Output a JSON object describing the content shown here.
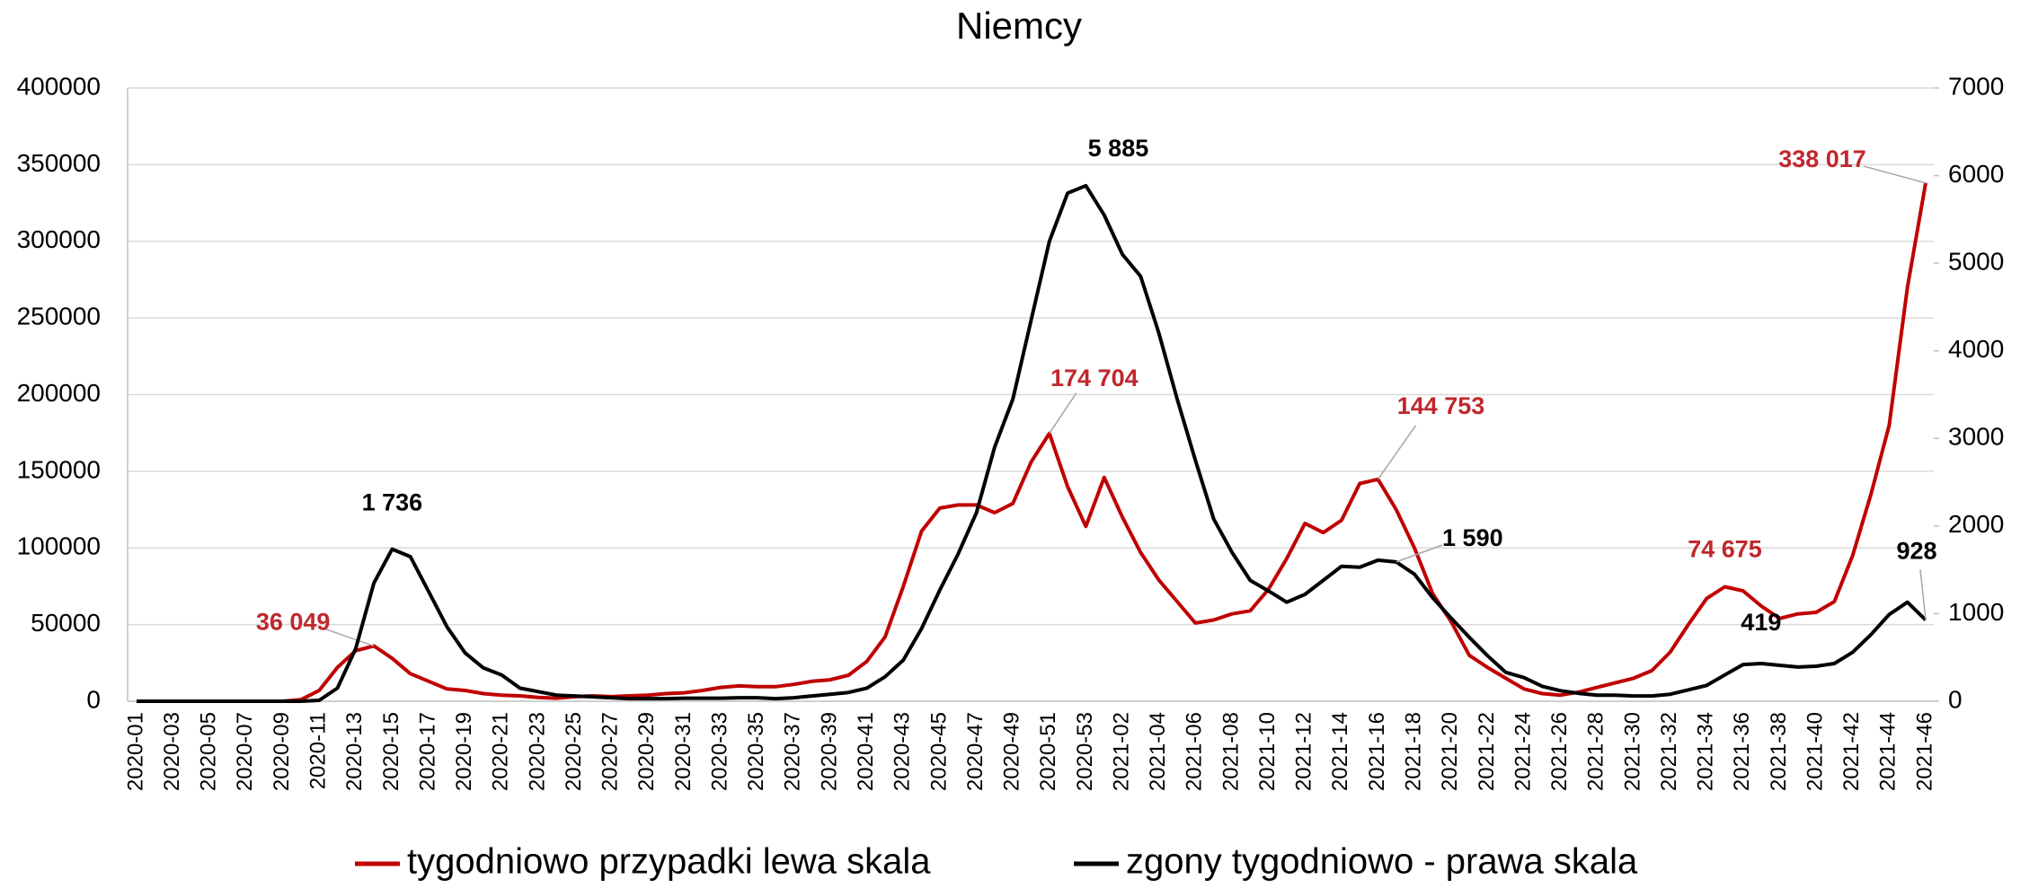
{
  "chart_data": {
    "type": "line",
    "title": "Niemcy",
    "categories": [
      "2020-01",
      null,
      "2020-03",
      null,
      "2020-05",
      null,
      "2020-07",
      null,
      "2020-09",
      null,
      "2020-11",
      null,
      "2020-13",
      null,
      "2020-15",
      null,
      "2020-17",
      null,
      "2020-19",
      null,
      "2020-21",
      null,
      "2020-23",
      null,
      "2020-25",
      null,
      "2020-27",
      null,
      "2020-29",
      null,
      "2020-31",
      null,
      "2020-33",
      null,
      "2020-35",
      null,
      "2020-37",
      null,
      "2020-39",
      null,
      "2020-41",
      null,
      "2020-43",
      null,
      "2020-45",
      null,
      "2020-47",
      null,
      "2020-49",
      null,
      "2020-51",
      null,
      "2020-53",
      null,
      "2021-02",
      null,
      "2021-04",
      null,
      "2021-06",
      null,
      "2021-08",
      null,
      "2021-10",
      null,
      "2021-12",
      null,
      "2021-14",
      null,
      "2021-16",
      null,
      "2021-18",
      null,
      "2021-20",
      null,
      "2021-22",
      null,
      "2021-24",
      null,
      "2021-26",
      null,
      "2021-28",
      null,
      "2021-30",
      null,
      "2021-32",
      null,
      "2021-34",
      null,
      "2021-36",
      null,
      "2021-38",
      null,
      "2021-40",
      null,
      "2021-42",
      null,
      "2021-44",
      null,
      "2021-46"
    ],
    "series": [
      {
        "name": "tygodniowo przypadki lewa skala",
        "color": "#c00000",
        "axis": "y",
        "values": [
          0,
          0,
          0,
          0,
          0,
          0,
          0,
          0,
          0,
          1000,
          7000,
          22000,
          33000,
          36049,
          28000,
          18000,
          13000,
          8000,
          7000,
          5000,
          4000,
          3500,
          2500,
          2000,
          3000,
          3500,
          3000,
          3500,
          4000,
          5000,
          5500,
          7000,
          9000,
          10000,
          9500,
          9500,
          11000,
          13000,
          14000,
          17000,
          26000,
          42000,
          75000,
          111000,
          126000,
          128000,
          128000,
          123000,
          129000,
          156000,
          174704,
          140000,
          114000,
          146000,
          120000,
          97000,
          79000,
          65000,
          51000,
          53000,
          57000,
          59000,
          73000,
          93000,
          116000,
          110000,
          118000,
          142000,
          144753,
          125000,
          100000,
          70000,
          52000,
          30000,
          22000,
          15000,
          8000,
          5000,
          4000,
          6000,
          9000,
          12000,
          15000,
          20000,
          32000,
          50000,
          67000,
          74675,
          72000,
          62000,
          54000,
          57000,
          58000,
          65000,
          95000,
          135000,
          180000,
          270000,
          338017
        ],
        "value_labels": [
          null,
          null,
          null,
          null,
          null,
          null,
          null,
          null,
          null,
          null,
          null,
          null,
          null,
          "36 049",
          null,
          null,
          null,
          null,
          null,
          null,
          null,
          null,
          null,
          null,
          null,
          null,
          null,
          null,
          null,
          null,
          null,
          null,
          null,
          null,
          null,
          null,
          null,
          null,
          null,
          null,
          null,
          null,
          null,
          null,
          null,
          null,
          null,
          null,
          null,
          null,
          "174 704",
          null,
          null,
          null,
          null,
          null,
          null,
          null,
          null,
          null,
          null,
          null,
          null,
          null,
          null,
          null,
          null,
          null,
          "144 753",
          null,
          null,
          null,
          null,
          null,
          null,
          null,
          null,
          null,
          null,
          null,
          null,
          null,
          null,
          null,
          null,
          null,
          null,
          "74 675",
          null,
          null,
          null,
          null,
          null,
          null,
          null,
          null,
          null,
          null,
          "338 017"
        ]
      },
      {
        "name": "zgony tygodniowo - prawa skala",
        "color": "#000000",
        "axis": "y2",
        "values": [
          0,
          0,
          0,
          0,
          0,
          0,
          0,
          0,
          0,
          0,
          10,
          150,
          600,
          1350,
          1736,
          1650,
          1250,
          850,
          550,
          380,
          300,
          150,
          110,
          70,
          60,
          50,
          40,
          30,
          30,
          30,
          35,
          35,
          35,
          40,
          40,
          30,
          40,
          60,
          80,
          100,
          150,
          280,
          470,
          830,
          1270,
          1680,
          2150,
          2900,
          3450,
          4350,
          5250,
          5800,
          5885,
          5550,
          5100,
          4850,
          4200,
          3450,
          2750,
          2080,
          1700,
          1380,
          1260,
          1130,
          1220,
          1380,
          1540,
          1530,
          1610,
          1590,
          1450,
          1180,
          950,
          730,
          520,
          330,
          270,
          170,
          120,
          90,
          70,
          70,
          60,
          60,
          80,
          130,
          180,
          300,
          419,
          430,
          410,
          390,
          400,
          430,
          560,
          760,
          990,
          1130,
          928
        ],
        "value_labels": [
          null,
          null,
          null,
          null,
          null,
          null,
          null,
          null,
          null,
          null,
          null,
          null,
          null,
          null,
          "1 736",
          null,
          null,
          null,
          null,
          null,
          null,
          null,
          null,
          null,
          null,
          null,
          null,
          null,
          null,
          null,
          null,
          null,
          null,
          null,
          null,
          null,
          null,
          null,
          null,
          null,
          null,
          null,
          null,
          null,
          null,
          null,
          null,
          null,
          null,
          null,
          null,
          null,
          "5 885",
          null,
          null,
          null,
          null,
          null,
          null,
          null,
          null,
          null,
          null,
          null,
          null,
          null,
          null,
          null,
          null,
          "1 590",
          null,
          null,
          null,
          null,
          null,
          null,
          null,
          null,
          null,
          null,
          null,
          null,
          null,
          null,
          null,
          null,
          null,
          null,
          "419",
          null,
          null,
          null,
          null,
          null,
          null,
          null,
          null,
          null,
          "928"
        ]
      }
    ],
    "ylim": [
      0,
      400000
    ],
    "yticks": [
      0,
      50000,
      100000,
      150000,
      200000,
      250000,
      300000,
      350000,
      400000
    ],
    "y2lim": [
      0,
      7000
    ],
    "y2ticks": [
      0,
      1000,
      2000,
      3000,
      4000,
      5000,
      6000,
      7000
    ],
    "grid": true,
    "legend": "bottom"
  }
}
